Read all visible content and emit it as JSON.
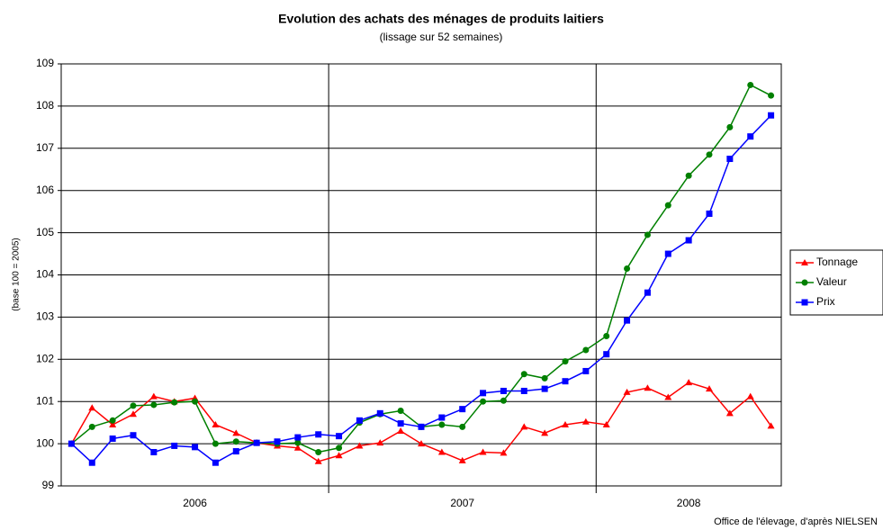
{
  "chart_data": {
    "type": "line",
    "title": "Evolution des achats des ménages de produits laitiers",
    "subtitle": "(lissage sur 52 semaines)",
    "y_label": "(base 100 = 2005)",
    "source": "Office de l'élevage, d'après NIELSEN",
    "categories": [
      null,
      null,
      null,
      null,
      null,
      null,
      "2006",
      null,
      null,
      null,
      null,
      null,
      null,
      null,
      null,
      null,
      null,
      null,
      null,
      "2007",
      null,
      null,
      null,
      null,
      null,
      null,
      null,
      null,
      null,
      null,
      "2008",
      null,
      null,
      null,
      null
    ],
    "ylim": [
      99,
      109
    ],
    "yticks": [
      99,
      100,
      101,
      102,
      103,
      104,
      105,
      106,
      107,
      108,
      109
    ],
    "grid": true,
    "legend": "right",
    "series": [
      {
        "name": "Tonnage",
        "color": "#ff0000",
        "marker": "triangle",
        "values": [
          100.0,
          100.85,
          100.45,
          100.7,
          101.12,
          101.0,
          101.08,
          100.45,
          100.25,
          100.02,
          99.95,
          99.9,
          99.58,
          99.72,
          99.95,
          100.02,
          100.3,
          100.0,
          99.8,
          99.6,
          99.8,
          99.78,
          100.4,
          100.25,
          100.45,
          100.52,
          100.45,
          101.22,
          101.32,
          101.1,
          101.45,
          101.3,
          100.72,
          101.12,
          100.42
        ]
      },
      {
        "name": "Valeur",
        "color": "#008000",
        "marker": "circle",
        "values": [
          100.0,
          100.4,
          100.55,
          100.9,
          100.92,
          100.98,
          101.0,
          100.0,
          100.05,
          100.02,
          100.0,
          100.02,
          99.8,
          99.9,
          100.5,
          100.7,
          100.78,
          100.4,
          100.45,
          100.4,
          101.0,
          101.02,
          101.65,
          101.55,
          101.95,
          102.22,
          102.55,
          104.15,
          104.95,
          105.65,
          106.35,
          106.85,
          107.5,
          108.5,
          108.25
        ]
      },
      {
        "name": "Prix",
        "color": "#0000ff",
        "marker": "square",
        "values": [
          100.0,
          99.55,
          100.12,
          100.2,
          99.8,
          99.95,
          99.92,
          99.55,
          99.82,
          100.02,
          100.05,
          100.15,
          100.22,
          100.18,
          100.55,
          100.72,
          100.48,
          100.4,
          100.62,
          100.82,
          101.2,
          101.25,
          101.25,
          101.3,
          101.48,
          101.72,
          102.12,
          102.92,
          103.58,
          104.5,
          104.82,
          105.45,
          106.75,
          107.28,
          107.78
        ]
      }
    ]
  }
}
